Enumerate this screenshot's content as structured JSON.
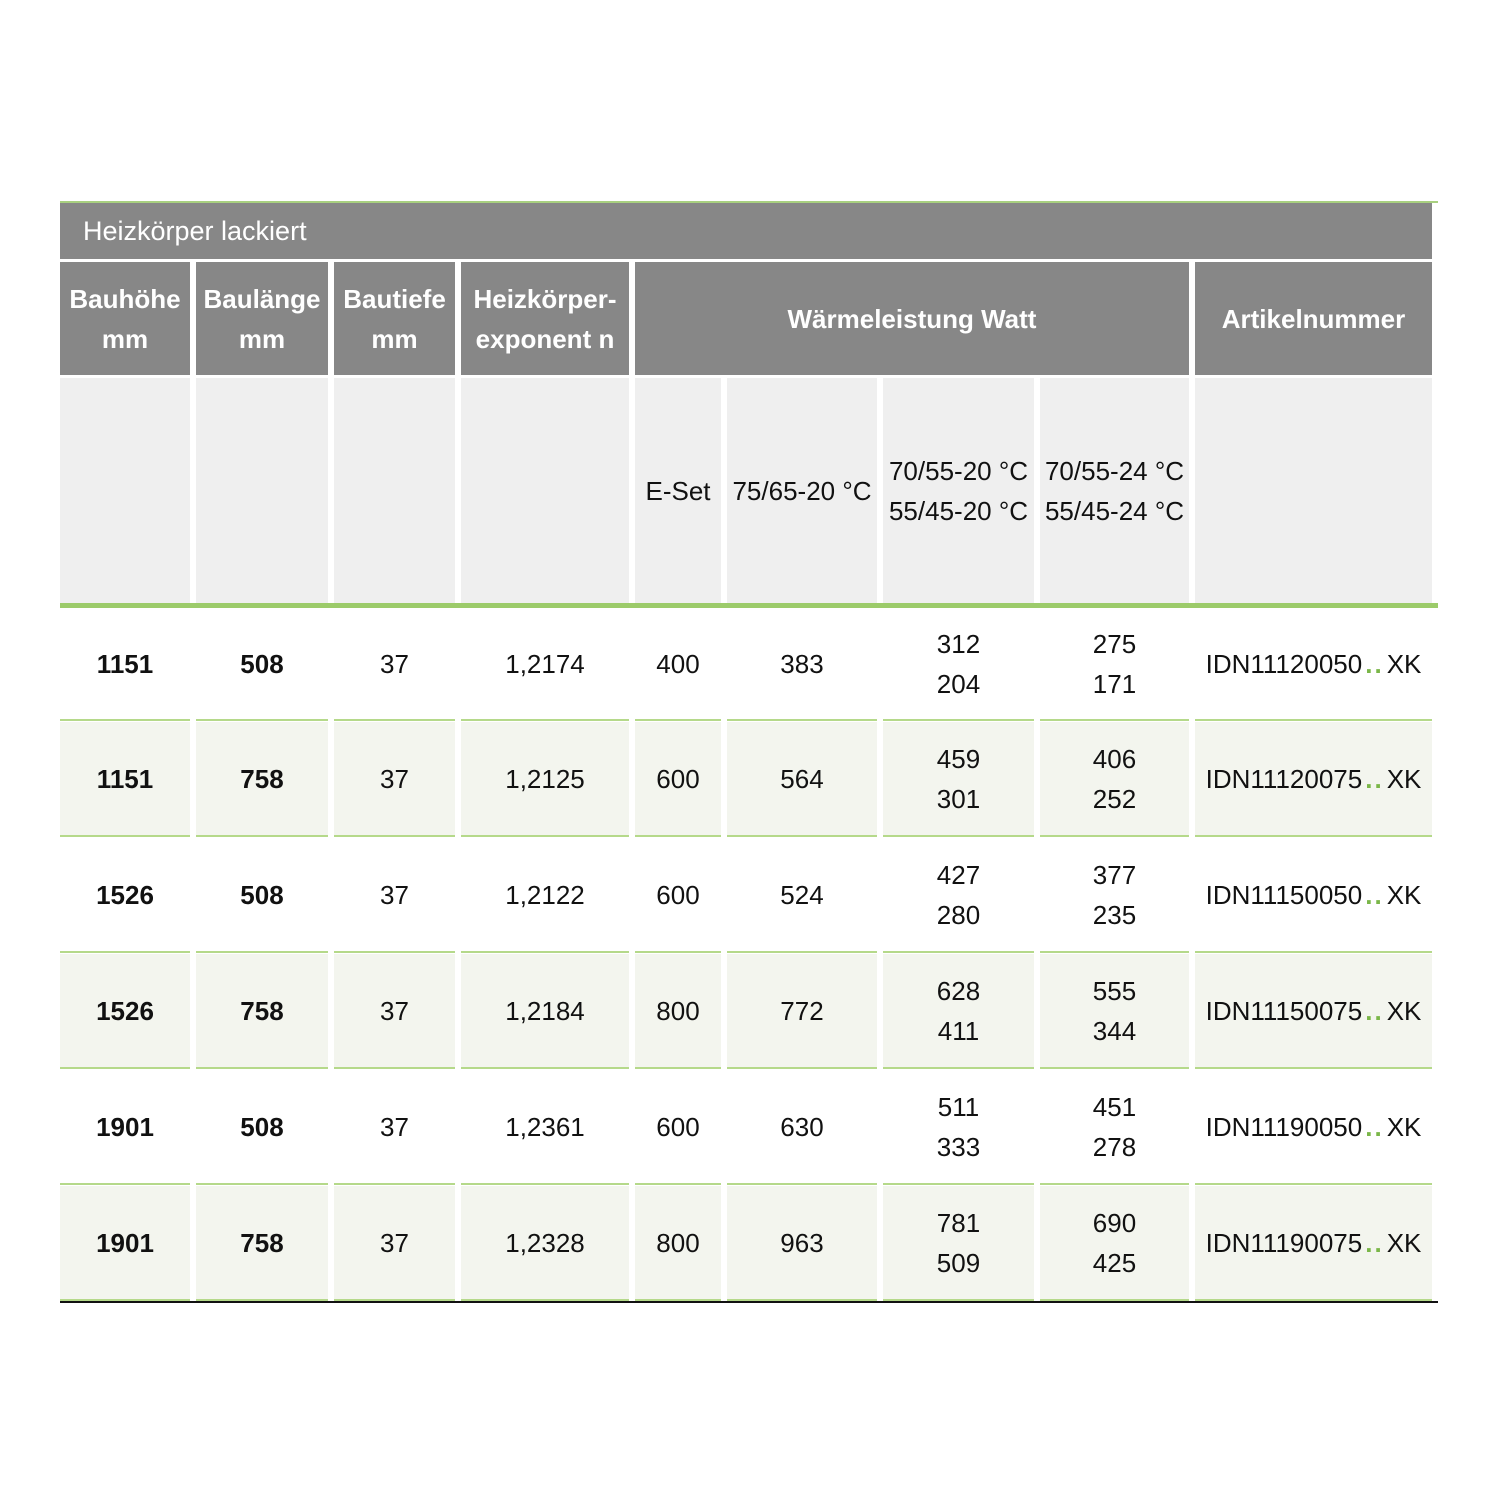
{
  "title": "Heizkörper lackiert",
  "headers": {
    "bauhoehe": [
      "Bauhöhe",
      "mm"
    ],
    "baulaenge": [
      "Baulänge",
      "mm"
    ],
    "bautiefe": [
      "Bautiefe",
      "mm"
    ],
    "exponent": [
      "Heizkörper-",
      "exponent n"
    ],
    "waermeleistung": "Wärmeleistung Watt",
    "artikelnummer": "Artikelnummer"
  },
  "subheaders": {
    "eset": "E-Set",
    "t1": "75/65-20 °C",
    "t2": [
      "70/55-20 °C",
      "55/45-20 °C"
    ],
    "t3": [
      "70/55-24 °C",
      "55/45-24 °C"
    ]
  },
  "accent_color": "#7ab648",
  "header_color": "#878787",
  "rows": [
    {
      "bauhoehe": "1151",
      "baulaenge": "508",
      "bautiefe": "37",
      "exponent": "1,2174",
      "eset": "400",
      "t1": "383",
      "t2": [
        "312",
        "204"
      ],
      "t3": [
        "275",
        "171"
      ],
      "artikel_prefix": "IDN11120050",
      "artikel_sep": "..",
      "artikel_suffix": "XK"
    },
    {
      "bauhoehe": "1151",
      "baulaenge": "758",
      "bautiefe": "37",
      "exponent": "1,2125",
      "eset": "600",
      "t1": "564",
      "t2": [
        "459",
        "301"
      ],
      "t3": [
        "406",
        "252"
      ],
      "artikel_prefix": "IDN11120075",
      "artikel_sep": "..",
      "artikel_suffix": "XK"
    },
    {
      "bauhoehe": "1526",
      "baulaenge": "508",
      "bautiefe": "37",
      "exponent": "1,2122",
      "eset": "600",
      "t1": "524",
      "t2": [
        "427",
        "280"
      ],
      "t3": [
        "377",
        "235"
      ],
      "artikel_prefix": "IDN11150050",
      "artikel_sep": "..",
      "artikel_suffix": "XK"
    },
    {
      "bauhoehe": "1526",
      "baulaenge": "758",
      "bautiefe": "37",
      "exponent": "1,2184",
      "eset": "800",
      "t1": "772",
      "t2": [
        "628",
        "411"
      ],
      "t3": [
        "555",
        "344"
      ],
      "artikel_prefix": "IDN11150075",
      "artikel_sep": "..",
      "artikel_suffix": "XK"
    },
    {
      "bauhoehe": "1901",
      "baulaenge": "508",
      "bautiefe": "37",
      "exponent": "1,2361",
      "eset": "600",
      "t1": "630",
      "t2": [
        "511",
        "333"
      ],
      "t3": [
        "451",
        "278"
      ],
      "artikel_prefix": "IDN11190050",
      "artikel_sep": "..",
      "artikel_suffix": "XK"
    },
    {
      "bauhoehe": "1901",
      "baulaenge": "758",
      "bautiefe": "37",
      "exponent": "1,2328",
      "eset": "800",
      "t1": "963",
      "t2": [
        "781",
        "509"
      ],
      "t3": [
        "690",
        "425"
      ],
      "artikel_prefix": "IDN11190075",
      "artikel_sep": "..",
      "artikel_suffix": "XK"
    }
  ]
}
